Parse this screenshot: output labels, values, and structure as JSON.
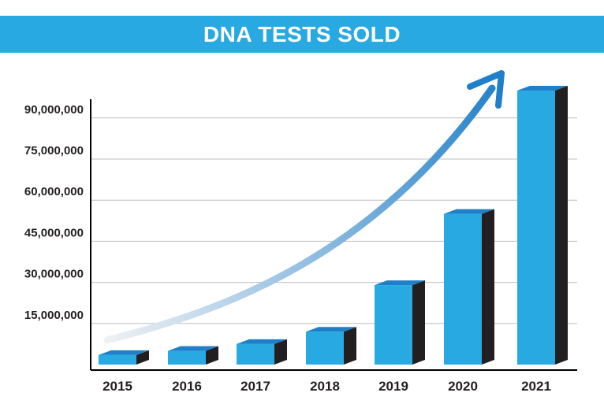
{
  "colors": {
    "title_bar": "#29a9e1",
    "bar_front": "#29a9e1",
    "bar_top": "#1f7fc9",
    "bar_side": "#231f20",
    "arrow_start": "#eef1f4",
    "arrow_end": "#1f7fc9",
    "gridline": "#bfbfbf",
    "axis": "#000000",
    "text": "#231f20"
  },
  "chart_data": {
    "type": "bar",
    "title": "DNA TESTS SOLD",
    "xlabel": "",
    "ylabel": "",
    "categories": [
      "2015",
      "2016",
      "2017",
      "2018",
      "2019",
      "2020",
      "2021"
    ],
    "values": [
      3500000,
      5000000,
      7500000,
      12000000,
      29000000,
      55000000,
      100000000
    ],
    "ylim": [
      0,
      100000000
    ],
    "yticks": [
      15000000,
      30000000,
      45000000,
      60000000,
      75000000,
      90000000
    ],
    "ytick_labels": [
      "15,000,000",
      "30,000,000",
      "45,000,000",
      "60,000,000",
      "75,000,000",
      "90,000,000"
    ],
    "grid": true,
    "style": "3d-bars",
    "trend_arrow": true
  }
}
